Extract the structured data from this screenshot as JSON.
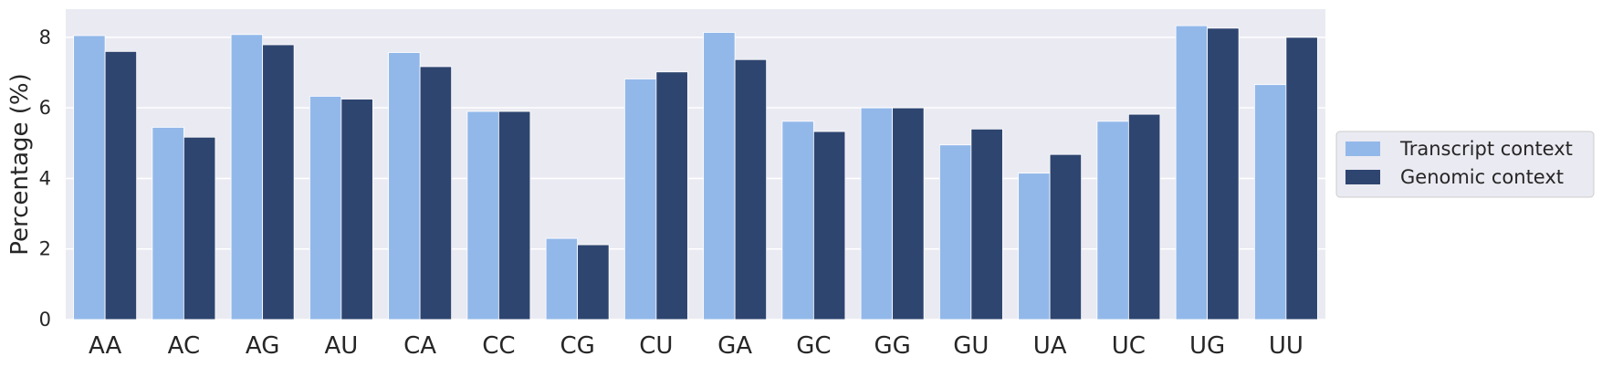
{
  "chart_data": {
    "type": "bar",
    "title": "",
    "xlabel": "",
    "ylabel": "Percentage (%)",
    "ylim": [
      0,
      8.8
    ],
    "yticks": [
      0,
      2,
      4,
      6,
      8
    ],
    "grid": "y",
    "legend_position": "right-center",
    "categories": [
      "AA",
      "AC",
      "AG",
      "AU",
      "CA",
      "CC",
      "CG",
      "CU",
      "GA",
      "GC",
      "GG",
      "GU",
      "UA",
      "UC",
      "UG",
      "UU"
    ],
    "series": [
      {
        "name": "Transcript context",
        "color": "#92b8ea",
        "values": [
          8.05,
          5.45,
          8.08,
          6.33,
          7.57,
          5.9,
          2.3,
          6.82,
          8.14,
          5.62,
          6.0,
          4.95,
          4.15,
          5.62,
          8.33,
          6.66
        ]
      },
      {
        "name": "Genomic context",
        "color": "#2e4570",
        "values": [
          7.6,
          5.17,
          7.79,
          6.25,
          7.17,
          5.9,
          2.12,
          7.02,
          7.37,
          5.33,
          6.0,
          5.4,
          4.68,
          5.82,
          8.26,
          8.0
        ]
      }
    ]
  }
}
